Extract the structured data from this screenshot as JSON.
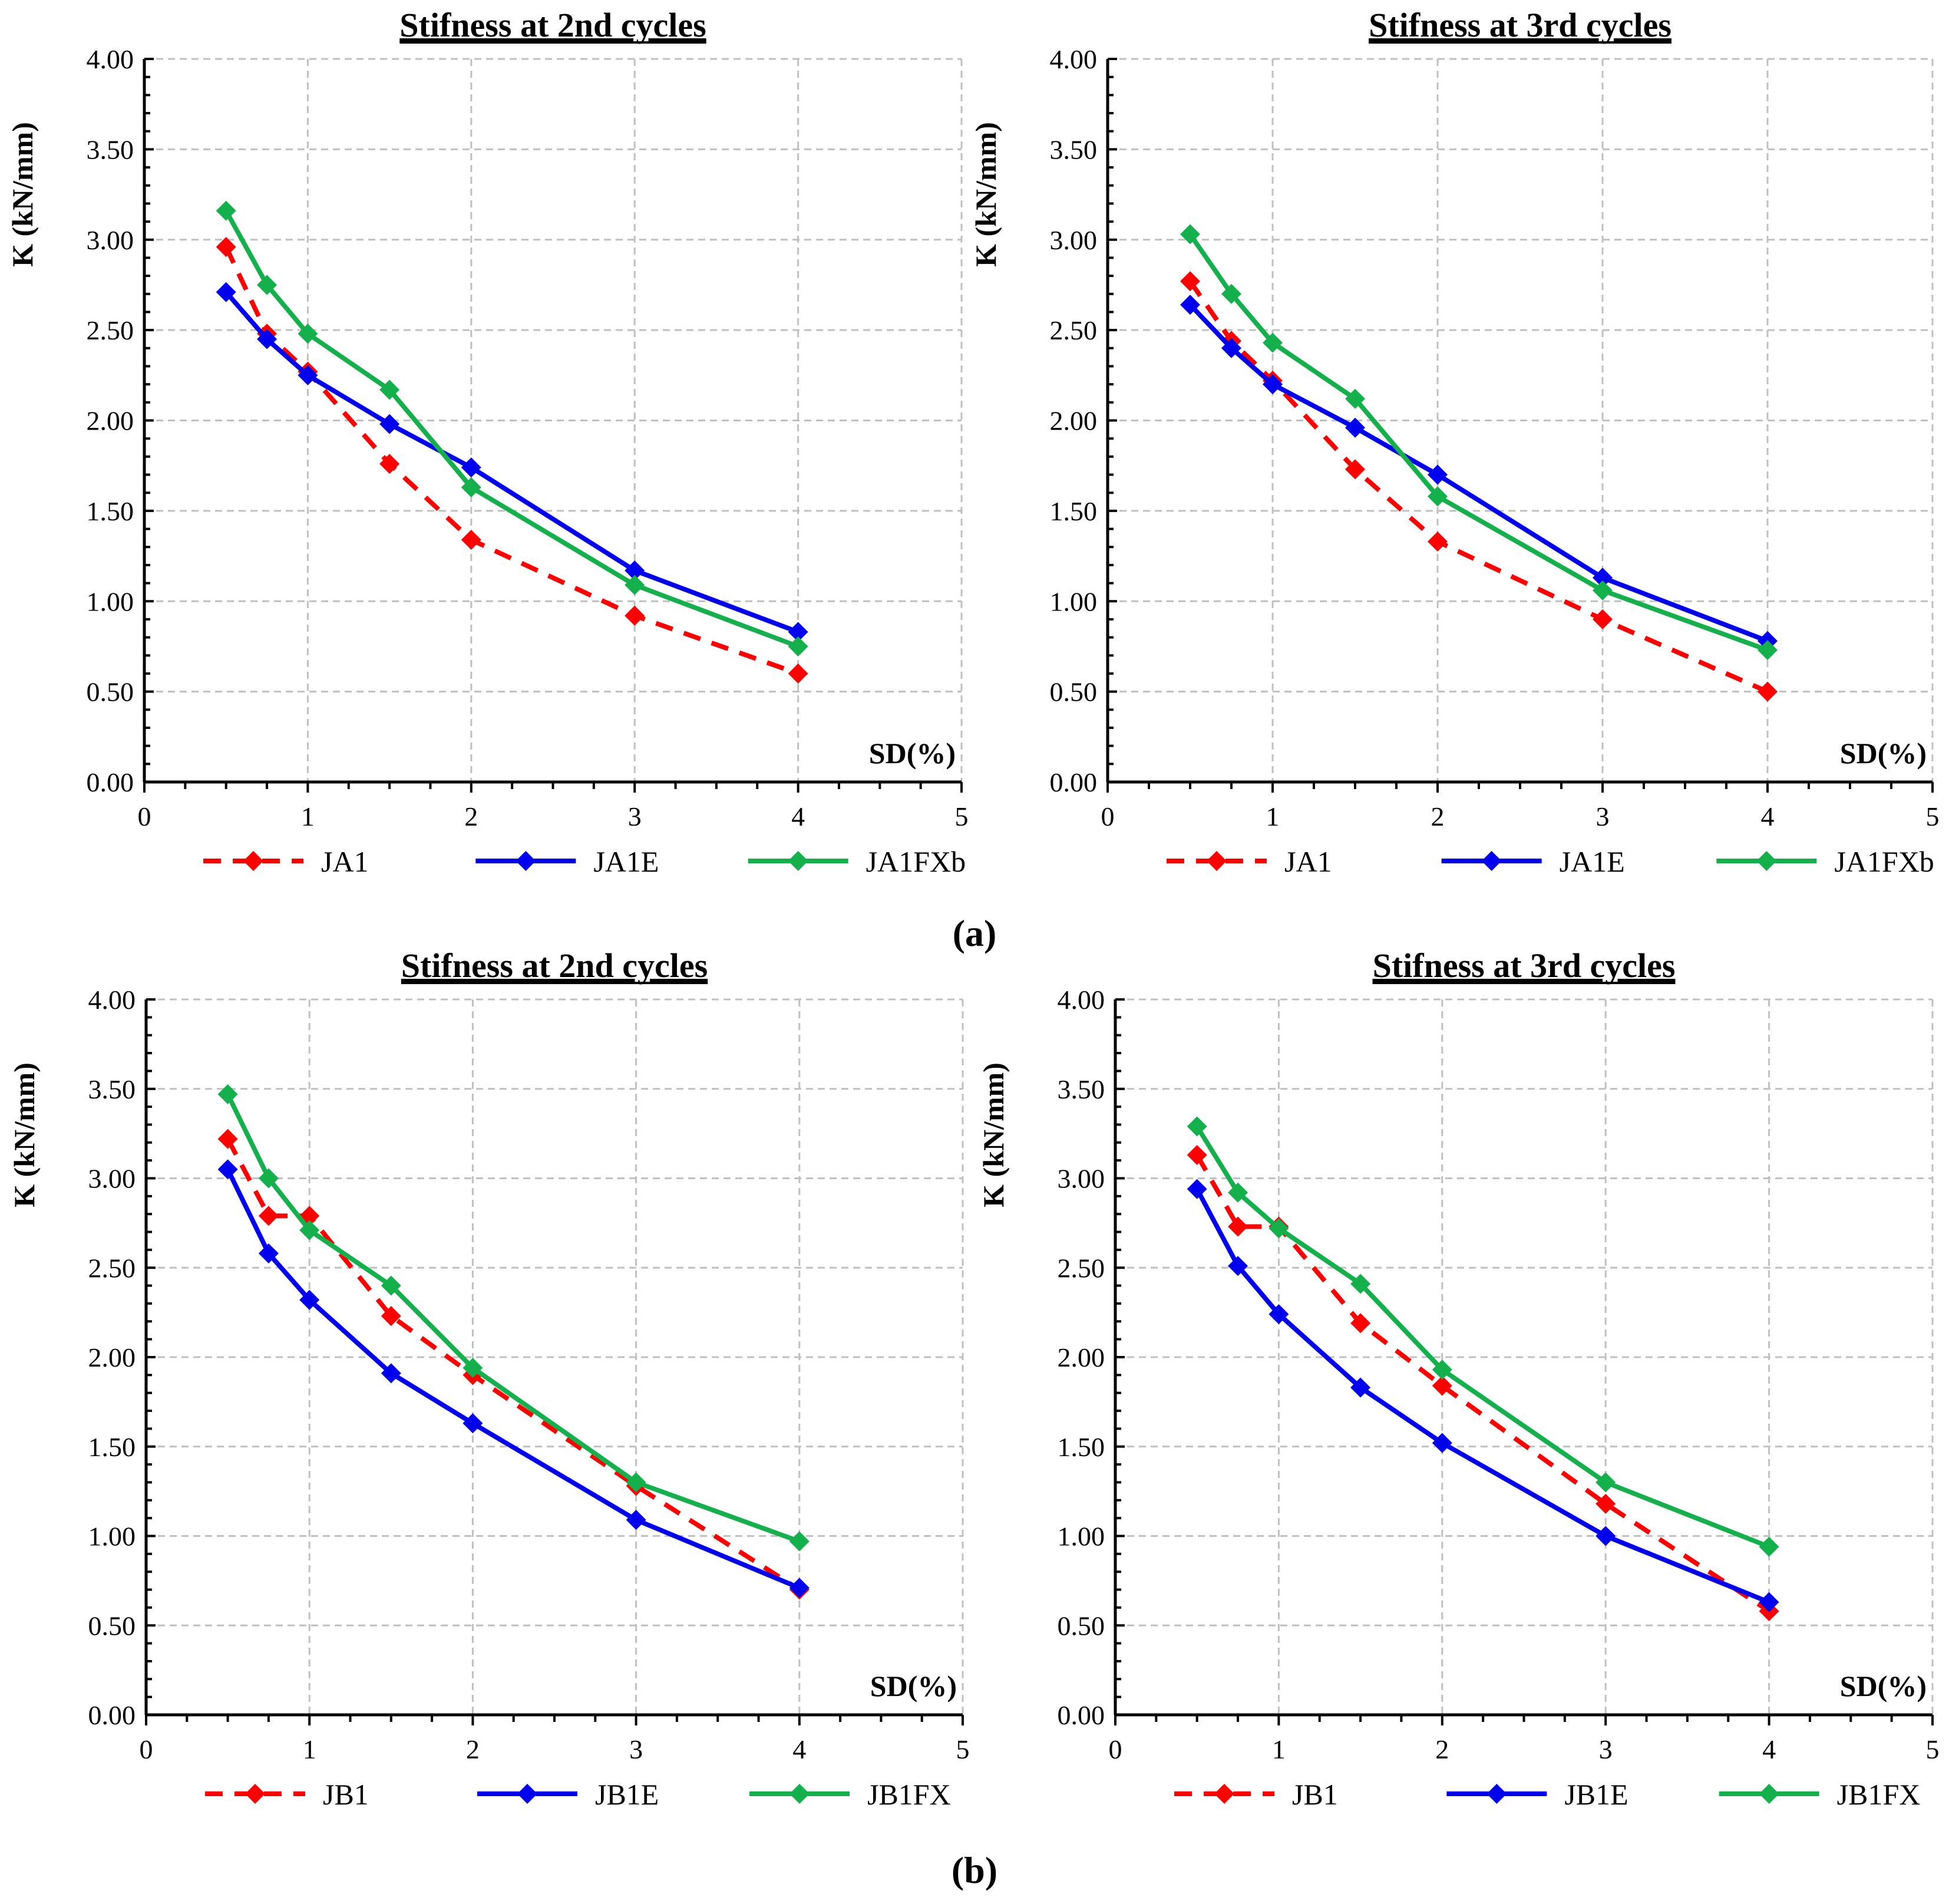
{
  "panel_labels": [
    "(a)",
    "(b)"
  ],
  "colors": {
    "red": "#ff0000",
    "blue": "#0000ee",
    "green": "#13b04b",
    "grid": "#c0c0c0",
    "axis": "#000000"
  },
  "chart_data": [
    {
      "type": "line",
      "title": "Stifness at 2nd cycles",
      "xlabel": "SD(%)",
      "ylabel": "K (kN/mm)",
      "xlim": [
        0,
        5
      ],
      "ylim": [
        0,
        4
      ],
      "xticks": [
        "0",
        "1",
        "2",
        "3",
        "4",
        "5"
      ],
      "yticks": [
        "0.00",
        "0.50",
        "1.00",
        "1.50",
        "2.00",
        "2.50",
        "3.00",
        "3.50",
        "4.00"
      ],
      "grid": true,
      "legend": "bottom",
      "x": [
        0.5,
        0.75,
        1,
        1.5,
        2,
        3,
        4
      ],
      "series": [
        {
          "name": "JA1",
          "color": "#ff0000",
          "dashed": true,
          "values": [
            2.96,
            2.48,
            2.27,
            1.76,
            1.34,
            0.92,
            0.6
          ]
        },
        {
          "name": "JA1E",
          "color": "#0000ee",
          "dashed": false,
          "values": [
            2.71,
            2.45,
            2.25,
            1.98,
            1.74,
            1.17,
            0.83
          ]
        },
        {
          "name": "JA1FXb",
          "color": "#13b04b",
          "dashed": false,
          "values": [
            3.16,
            2.75,
            2.48,
            2.17,
            1.63,
            1.09,
            0.75
          ]
        }
      ]
    },
    {
      "type": "line",
      "title": "Stifness at 3rd cycles",
      "xlabel": "SD(%)",
      "ylabel": "K (kN/mm)",
      "xlim": [
        0,
        5
      ],
      "ylim": [
        0,
        4
      ],
      "xticks": [
        "0",
        "1",
        "2",
        "3",
        "4",
        "5"
      ],
      "yticks": [
        "0.00",
        "0.50",
        "1.00",
        "1.50",
        "2.00",
        "2.50",
        "3.00",
        "3.50",
        "4.00"
      ],
      "grid": true,
      "legend": "bottom",
      "x": [
        0.5,
        0.75,
        1,
        1.5,
        2,
        3,
        4
      ],
      "series": [
        {
          "name": "JA1",
          "color": "#ff0000",
          "dashed": true,
          "values": [
            2.77,
            2.44,
            2.22,
            1.73,
            1.33,
            0.9,
            0.5
          ]
        },
        {
          "name": "JA1E",
          "color": "#0000ee",
          "dashed": false,
          "values": [
            2.64,
            2.4,
            2.2,
            1.96,
            1.7,
            1.13,
            0.78
          ]
        },
        {
          "name": "JA1FXb",
          "color": "#13b04b",
          "dashed": false,
          "values": [
            3.03,
            2.7,
            2.43,
            2.12,
            1.58,
            1.06,
            0.73
          ]
        }
      ]
    },
    {
      "type": "line",
      "title": "Stifness at 2nd cycles",
      "xlabel": "SD(%)",
      "ylabel": "K (kN/mm)",
      "xlim": [
        0,
        5
      ],
      "ylim": [
        0,
        4
      ],
      "xticks": [
        "0",
        "1",
        "2",
        "3",
        "4",
        "5"
      ],
      "yticks": [
        "0.00",
        "0.50",
        "1.00",
        "1.50",
        "2.00",
        "2.50",
        "3.00",
        "3.50",
        "4.00"
      ],
      "grid": true,
      "legend": "bottom",
      "x": [
        0.5,
        0.75,
        1,
        1.5,
        2,
        3,
        4
      ],
      "series": [
        {
          "name": "JB1",
          "color": "#ff0000",
          "dashed": true,
          "values": [
            3.22,
            2.79,
            2.79,
            2.23,
            1.9,
            1.28,
            0.7
          ]
        },
        {
          "name": "JB1E",
          "color": "#0000ee",
          "dashed": false,
          "values": [
            3.05,
            2.58,
            2.32,
            1.91,
            1.63,
            1.09,
            0.71
          ]
        },
        {
          "name": "JB1FX",
          "color": "#13b04b",
          "dashed": false,
          "values": [
            3.47,
            3.0,
            2.71,
            2.4,
            1.94,
            1.3,
            0.97
          ]
        }
      ]
    },
    {
      "type": "line",
      "title": "Stifness at 3rd cycles",
      "xlabel": "SD(%)",
      "ylabel": "K (kN/mm)",
      "xlim": [
        0,
        5
      ],
      "ylim": [
        0,
        4
      ],
      "xticks": [
        "0",
        "1",
        "2",
        "3",
        "4",
        "5"
      ],
      "yticks": [
        "0.00",
        "0.50",
        "1.00",
        "1.50",
        "2.00",
        "2.50",
        "3.00",
        "3.50",
        "4.00"
      ],
      "grid": true,
      "legend": "bottom",
      "x": [
        0.5,
        0.75,
        1,
        1.5,
        2,
        3,
        4
      ],
      "series": [
        {
          "name": "JB1",
          "color": "#ff0000",
          "dashed": true,
          "values": [
            3.13,
            2.73,
            2.73,
            2.19,
            1.84,
            1.18,
            0.58
          ]
        },
        {
          "name": "JB1E",
          "color": "#0000ee",
          "dashed": false,
          "values": [
            2.94,
            2.51,
            2.24,
            1.83,
            1.52,
            1.0,
            0.63
          ]
        },
        {
          "name": "JB1FX",
          "color": "#13b04b",
          "dashed": false,
          "values": [
            3.29,
            2.92,
            2.72,
            2.41,
            1.93,
            1.3,
            0.94
          ]
        }
      ]
    }
  ]
}
